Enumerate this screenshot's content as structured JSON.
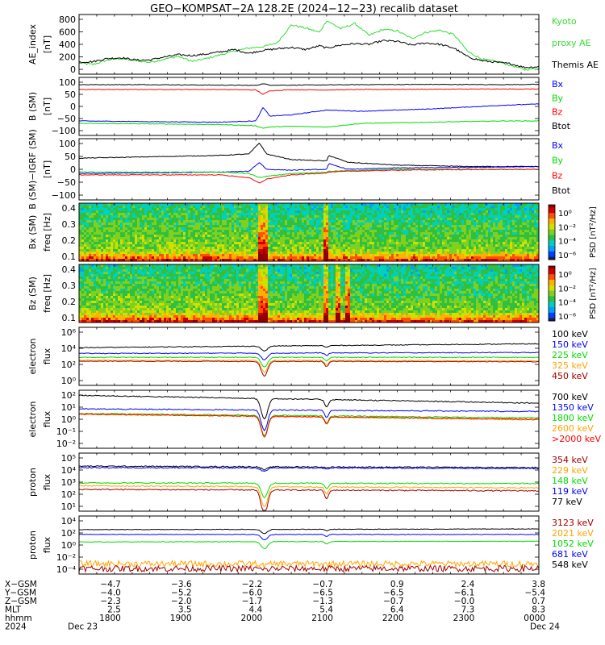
{
  "title": "GEO−KOMPSAT−2A 128.2E (2024−12−23) recalib dataset",
  "colors": {
    "black": "#000000",
    "blue": "#0000ff",
    "red": "#ff0000",
    "green": "#00dd00",
    "orange": "#ffa500",
    "darkred": "#a00000",
    "kyoto_green": "#33dd33"
  },
  "chart_data": [
    {
      "type": "line",
      "id": "ae",
      "ylabel_lines": [
        "AE_index",
        "[nT]"
      ],
      "ylim": [
        0,
        800
      ],
      "yticks": [
        "800",
        "600",
        "400",
        "200",
        "0"
      ],
      "legend": [
        {
          "name": "Kyoto",
          "color": "#33dd33"
        },
        {
          "name": "proxy AE",
          "color": "#33dd33"
        },
        {
          "name": "Themis AE",
          "color": "#000000"
        }
      ],
      "series": [
        {
          "name": "Kyoto proxy AE",
          "color": "#33dd33",
          "x": [
            17.5,
            17.7,
            17.9,
            18.1,
            18.3,
            18.5,
            18.7,
            18.9,
            19.1,
            19.3,
            19.5,
            19.7,
            19.9,
            20.1,
            20.3,
            20.5,
            20.7,
            20.9,
            21.0,
            21.2,
            21.4,
            21.6,
            21.8,
            22.0,
            22.2,
            22.4,
            22.6,
            22.8,
            23.0,
            23.2,
            23.4,
            23.6,
            23.8,
            24.0
          ],
          "y": [
            150,
            130,
            190,
            210,
            180,
            160,
            200,
            240,
            170,
            210,
            260,
            310,
            350,
            370,
            420,
            660,
            620,
            560,
            720,
            610,
            680,
            520,
            600,
            580,
            480,
            560,
            590,
            530,
            300,
            200,
            170,
            120,
            60,
            80
          ]
        },
        {
          "name": "Themis AE",
          "color": "#000000",
          "x": [
            17.5,
            17.7,
            17.9,
            18.1,
            18.3,
            18.5,
            18.7,
            18.9,
            19.1,
            19.3,
            19.5,
            19.7,
            19.9,
            20.1,
            20.3,
            20.5,
            20.7,
            20.9,
            21.0,
            21.2,
            21.4,
            21.6,
            21.8,
            22.0,
            22.2,
            22.4,
            22.6,
            22.8,
            23.0,
            23.2,
            23.4,
            23.6,
            23.8,
            24.0
          ],
          "y": [
            160,
            170,
            210,
            220,
            190,
            190,
            230,
            260,
            250,
            270,
            300,
            330,
            280,
            320,
            340,
            360,
            330,
            380,
            350,
            390,
            410,
            400,
            450,
            440,
            390,
            420,
            400,
            350,
            230,
            180,
            160,
            140,
            90,
            100
          ]
        }
      ]
    },
    {
      "type": "line",
      "id": "bsm",
      "ylabel_lines": [
        "B (SM)",
        "[nT]"
      ],
      "ylim": [
        -110,
        130
      ],
      "yticks": [
        "100",
        "50",
        "0",
        "−50",
        "−100"
      ],
      "legend": [
        {
          "name": "Bx",
          "color": "#0000ff"
        },
        {
          "name": "By",
          "color": "#00dd00"
        },
        {
          "name": "Bz",
          "color": "#ff0000"
        },
        {
          "name": "Btot",
          "color": "#000000"
        }
      ],
      "series": [
        {
          "name": "Btot",
          "color": "#000000",
          "x": [
            17.5,
            18.5,
            19.5,
            20.0,
            20.1,
            20.2,
            20.5,
            21.0,
            21.5,
            22.5,
            23.5,
            24.0
          ],
          "y": [
            100,
            100,
            98,
            97,
            104,
            98,
            98,
            99,
            100,
            101,
            100,
            101
          ]
        },
        {
          "name": "Bz",
          "color": "#ff0000",
          "x": [
            17.5,
            18.5,
            19.5,
            20.0,
            20.1,
            20.2,
            20.5,
            21.0,
            21.5,
            22.5,
            23.5,
            24.0
          ],
          "y": [
            80,
            80,
            80,
            78,
            60,
            75,
            79,
            78,
            80,
            81,
            82,
            82
          ]
        },
        {
          "name": "Bx",
          "color": "#0000ff",
          "x": [
            17.5,
            18.5,
            19.5,
            20.0,
            20.1,
            20.2,
            20.5,
            21.0,
            21.5,
            22.5,
            23.5,
            24.0
          ],
          "y": [
            -50,
            -53,
            -55,
            -50,
            5,
            -30,
            -25,
            -5,
            -10,
            0,
            15,
            20
          ]
        },
        {
          "name": "By",
          "color": "#00dd00",
          "x": [
            17.5,
            18.5,
            19.5,
            20.0,
            20.1,
            20.2,
            20.5,
            21.0,
            21.5,
            22.5,
            23.5,
            24.0
          ],
          "y": [
            -60,
            -62,
            -65,
            -70,
            -80,
            -75,
            -72,
            -75,
            -60,
            -55,
            -50,
            -50
          ]
        }
      ]
    },
    {
      "type": "line",
      "id": "bigrf",
      "ylabel_lines": [
        "B (SM)−IGRF (SM)",
        "[nT]"
      ],
      "ylim": [
        -115,
        105
      ],
      "yticks": [
        "100",
        "50",
        "0",
        "−50",
        "−100"
      ],
      "legend": [
        {
          "name": "Bx",
          "color": "#0000ff"
        },
        {
          "name": "By",
          "color": "#00dd00"
        },
        {
          "name": "Bz",
          "color": "#ff0000"
        },
        {
          "name": "Btot",
          "color": "#000000"
        }
      ],
      "series": [
        {
          "name": "Btot",
          "color": "#000000",
          "x": [
            17.5,
            18.5,
            19.5,
            19.9,
            20.05,
            20.15,
            20.5,
            21.0,
            21.03,
            21.3,
            22.0,
            23.0,
            24.0
          ],
          "y": [
            35,
            40,
            45,
            50,
            90,
            50,
            30,
            25,
            45,
            20,
            10,
            5,
            5
          ]
        },
        {
          "name": "Bx",
          "color": "#0000ff",
          "x": [
            17.5,
            18.5,
            19.5,
            19.9,
            20.05,
            20.15,
            20.5,
            21.0,
            21.03,
            21.3,
            22.0,
            23.0,
            24.0
          ],
          "y": [
            -20,
            -18,
            -15,
            -12,
            20,
            -5,
            -8,
            -5,
            15,
            -5,
            0,
            2,
            5
          ]
        },
        {
          "name": "By",
          "color": "#00dd00",
          "x": [
            17.5,
            18.5,
            19.5,
            19.9,
            20.05,
            20.15,
            20.5,
            21.0,
            21.03,
            21.3,
            22.0,
            23.0,
            24.0
          ],
          "y": [
            -15,
            -15,
            -15,
            -20,
            -35,
            -30,
            -20,
            -15,
            -12,
            -10,
            -5,
            -5,
            -5
          ]
        },
        {
          "name": "Bz",
          "color": "#ff0000",
          "x": [
            17.5,
            18.5,
            19.5,
            19.9,
            20.05,
            20.15,
            20.5,
            21.0,
            21.03,
            21.3,
            22.0,
            23.0,
            24.0
          ],
          "y": [
            -25,
            -25,
            -25,
            -35,
            -55,
            -40,
            -25,
            -18,
            -15,
            -12,
            -8,
            -6,
            -5
          ]
        }
      ]
    },
    {
      "type": "heatmap",
      "id": "bxspec",
      "ylabel_lines": [
        "Bx (SM)",
        "freq [Hz]"
      ],
      "ylim": [
        0.03,
        0.5
      ],
      "yticks": [
        "0.4",
        "0.3",
        "0.2",
        "0.1"
      ],
      "colorbar_label": "PSD [nT²/Hz]",
      "colorbar_ticks": [
        "10⁰",
        "10⁻²",
        "10⁻⁴",
        "10⁻⁶"
      ],
      "bright_bands_hour": [
        20.05,
        20.12,
        21.0
      ]
    },
    {
      "type": "heatmap",
      "id": "bzspec",
      "ylabel_lines": [
        "Bz (SM)",
        "freq [Hz]"
      ],
      "ylim": [
        0.03,
        0.5
      ],
      "yticks": [
        "0.4",
        "0.3",
        "0.2",
        "0.1"
      ],
      "colorbar_label": "PSD [nT²/Hz]",
      "colorbar_ticks": [
        "10⁰",
        "10⁻²",
        "10⁻⁴",
        "10⁻⁶"
      ],
      "bright_bands_hour": [
        20.05,
        20.12,
        21.0,
        21.15,
        21.3
      ]
    },
    {
      "type": "line",
      "id": "elec_low",
      "log": true,
      "ylabel_lines": [
        "electron",
        "flux"
      ],
      "ylog_range": [
        0,
        6
      ],
      "yticks": [
        "10⁶",
        "10⁴",
        "10²",
        "10⁰"
      ],
      "legend": [
        {
          "name": "100 keV",
          "color": "#000000"
        },
        {
          "name": "150 keV",
          "color": "#0000ff"
        },
        {
          "name": "225 keV",
          "color": "#00dd00"
        },
        {
          "name": "325 keV",
          "color": "#ffa500"
        },
        {
          "name": "450 keV",
          "color": "#a00000"
        }
      ],
      "dip_hour": 20.12,
      "dip2_hour": 21.0,
      "series": [
        {
          "name": "100 keV",
          "color": "#000000",
          "base": 3.9,
          "late": 4.3,
          "dip": 0.5
        },
        {
          "name": "150 keV",
          "color": "#0000ff",
          "base": 3.3,
          "late": 3.4,
          "dip": 0.7
        },
        {
          "name": "225 keV",
          "color": "#00dd00",
          "base": 2.9,
          "late": 2.9,
          "dip": 1.0
        },
        {
          "name": "325 keV",
          "color": "#ffa500",
          "base": 2.6,
          "late": 2.55,
          "dip": 1.2
        },
        {
          "name": "450 keV",
          "color": "#a00000",
          "base": 2.5,
          "late": 2.45,
          "dip": 1.5
        }
      ]
    },
    {
      "type": "line",
      "id": "elec_high",
      "log": true,
      "ylabel_lines": [
        "electron",
        "flux"
      ],
      "ylog_range": [
        -2.5,
        2
      ],
      "yticks": [
        "10²",
        "10¹",
        "10⁰",
        "10⁻¹",
        "10⁻²"
      ],
      "legend": [
        {
          "name": "700 keV",
          "color": "#000000"
        },
        {
          "name": "1350 keV",
          "color": "#0000ff"
        },
        {
          "name": "1800 keV",
          "color": "#00dd00"
        },
        {
          "name": "2600 keV",
          "color": "#ffa500"
        },
        {
          "name": ">2000 keV",
          "color": "#ff0000"
        }
      ],
      "dip_hour": 20.12,
      "dip2_hour": 21.0,
      "series": [
        {
          "name": "700 keV",
          "color": "#000000",
          "base": 1.6,
          "late": 1.0,
          "dip": 1.6
        },
        {
          "name": "1350 keV",
          "color": "#0000ff",
          "base": 0.55,
          "late": 0.35,
          "dip": 1.6
        },
        {
          "name": "1800 keV",
          "color": "#00dd00",
          "base": 0.2,
          "late": -0.15,
          "dip": 1.6
        },
        {
          "name": "2600 keV",
          "color": "#ffa500",
          "base": 0.15,
          "late": -0.3,
          "dip": 1.6
        },
        {
          "name": ">2000 keV",
          "color": "#ff0000",
          "base": 0.15,
          "late": -0.25,
          "dip": 1.6
        }
      ]
    },
    {
      "type": "line",
      "id": "proton_low",
      "log": true,
      "ylabel_lines": [
        "proton",
        "flux"
      ],
      "ylog_range": [
        1,
        5
      ],
      "yticks": [
        "10⁵",
        "10⁴",
        "10³",
        "10²",
        "10¹"
      ],
      "legend": [
        {
          "name": "354 keV",
          "color": "#a00000"
        },
        {
          "name": "229 keV",
          "color": "#ffa500"
        },
        {
          "name": "148 keV",
          "color": "#00dd00"
        },
        {
          "name": "119 keV",
          "color": "#0000ff"
        },
        {
          "name": "77 keV",
          "color": "#000000"
        }
      ],
      "dip_hour": 20.12,
      "dip2_hour": 21.0,
      "series": [
        {
          "name": "77 keV",
          "color": "#000000",
          "base": 4.1,
          "late": 4.0,
          "dip": 0.2
        },
        {
          "name": "119 keV",
          "color": "#0000ff",
          "base": 4.0,
          "late": 3.95,
          "dip": 0.25
        },
        {
          "name": "148 keV",
          "color": "#00dd00",
          "base": 2.95,
          "late": 2.9,
          "dip": 1.0
        },
        {
          "name": "229 keV",
          "color": "#ffa500",
          "base": 2.75,
          "late": 2.6,
          "dip": 1.4
        },
        {
          "name": "354 keV",
          "color": "#a00000",
          "base": 2.5,
          "late": 2.4,
          "dip": 1.7
        }
      ]
    },
    {
      "type": "line",
      "id": "proton_high",
      "log": true,
      "ylabel_lines": [
        "proton",
        "flux"
      ],
      "ylog_range": [
        -4.5,
        4
      ],
      "yticks": [
        "10⁴",
        "10²",
        "10⁰",
        "10⁻²",
        "10⁻⁴"
      ],
      "legend": [
        {
          "name": "3123 keV",
          "color": "#a00000"
        },
        {
          "name": "2021 keV",
          "color": "#ffa500"
        },
        {
          "name": "1052 keV",
          "color": "#00dd00"
        },
        {
          "name": "681 keV",
          "color": "#0000ff"
        },
        {
          "name": "548 keV",
          "color": "#000000"
        }
      ],
      "dip_hour": 20.12,
      "dip2_hour": 21.0,
      "series": [
        {
          "name": "548 keV",
          "color": "#000000",
          "base": 2.0,
          "late": 2.1,
          "dip": 0.6
        },
        {
          "name": "681 keV",
          "color": "#0000ff",
          "base": 1.3,
          "late": 1.3,
          "dip": 0.8
        },
        {
          "name": "1052 keV",
          "color": "#00dd00",
          "base": 0.2,
          "late": 0.3,
          "dip": 1.0
        },
        {
          "name": "2021 keV",
          "color": "#ffa500",
          "base": -3.0,
          "late": -3.0,
          "dip": 0.3,
          "noisy": true
        },
        {
          "name": "3123 keV",
          "color": "#a00000",
          "base": -3.7,
          "late": -3.7,
          "dip": 0.2,
          "noisy": true
        }
      ]
    }
  ],
  "axis_x": {
    "xlim": [
      17.5,
      24.0
    ],
    "major_hours": [
      17.5,
      18.5,
      19.5,
      20.5,
      21.5,
      22.5,
      23.5,
      24.0
    ],
    "ephemeris_labels": [
      "X−GSM",
      "Y−GSM",
      "Z−GSM",
      "MLT",
      "hhmm",
      "2024"
    ],
    "ephemeris_columns": [
      [
        "−4.7",
        "−4.0",
        "−2.3",
        "2.5",
        "1800",
        "Dec 23"
      ],
      [
        "−3.6",
        "−5.2",
        "−2.0",
        "3.5",
        "1900",
        ""
      ],
      [
        "−2.2",
        "−6.0",
        "−1.7",
        "4.4",
        "2000",
        ""
      ],
      [
        "−0.7",
        "−6.5",
        "−1.3",
        "5.4",
        "2100",
        ""
      ],
      [
        "0.9",
        "−6.5",
        "−0.7",
        "6.4",
        "2200",
        ""
      ],
      [
        "2.4",
        "−6.1",
        "−0.0",
        "7.3",
        "2300",
        ""
      ],
      [
        "3.8",
        "−5.4",
        "0.7",
        "8.3",
        "0000",
        "Dec 24"
      ]
    ]
  }
}
